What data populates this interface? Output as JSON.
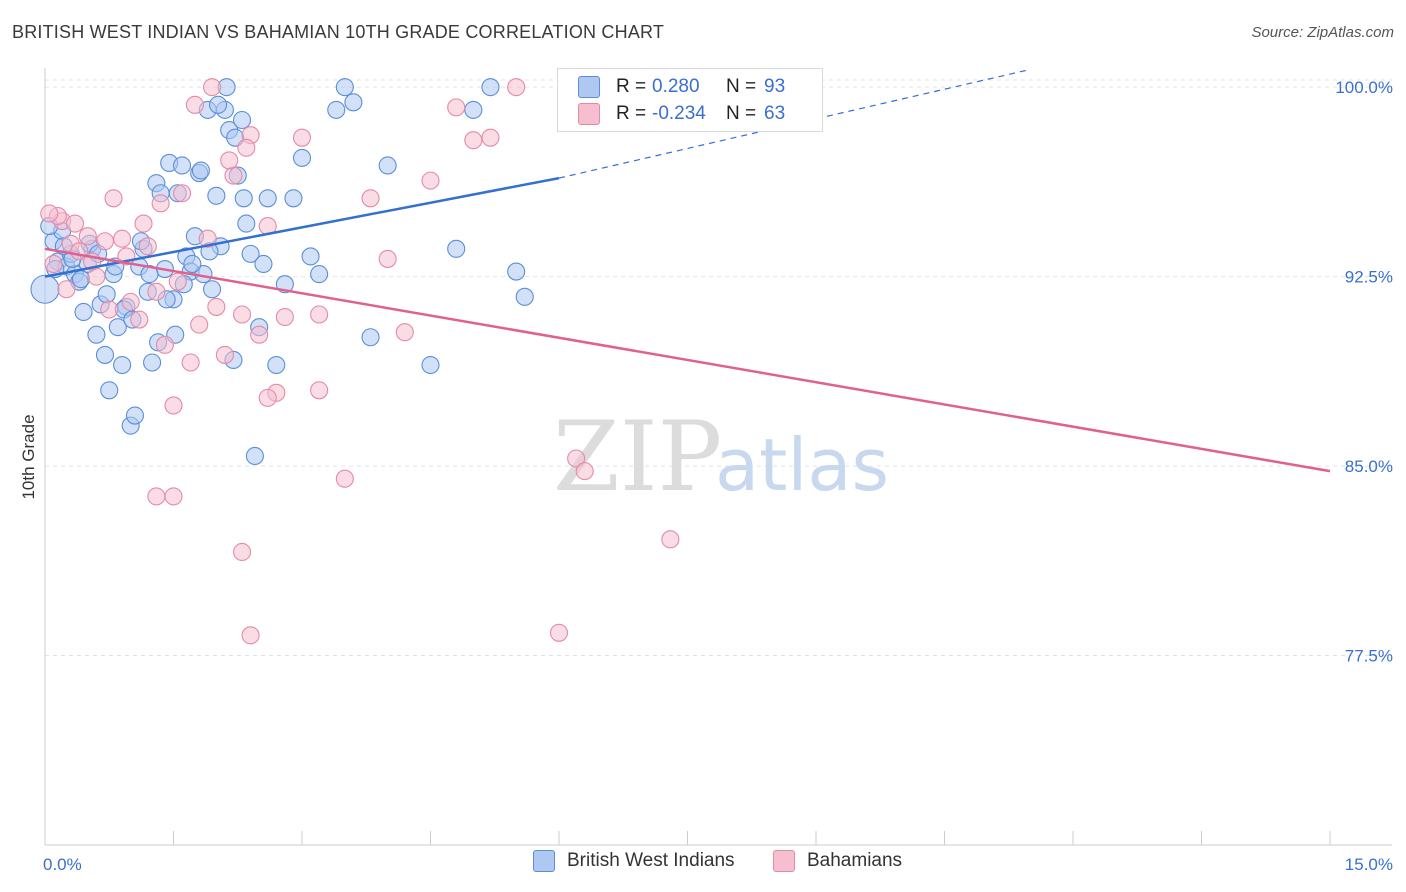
{
  "title": "BRITISH WEST INDIAN VS BAHAMIAN 10TH GRADE CORRELATION CHART",
  "source": "Source: ZipAtlas.com",
  "watermark": {
    "zip": "ZIP",
    "atlas": "atlas"
  },
  "legend": {
    "rows": [
      {
        "r_label": "R =",
        "r_value": "0.280",
        "n_label": "N =",
        "n_value": "93",
        "color": "#aec8f2",
        "border": "#5a8fd8"
      },
      {
        "r_label": "R =",
        "r_value": "-0.234",
        "n_label": "N =",
        "n_value": "63",
        "color": "#f6bfd0",
        "border": "#e48aa8"
      }
    ]
  },
  "bottom_legend": [
    {
      "label": "British West Indians",
      "color": "#aec8f2",
      "border": "#5a8fd8"
    },
    {
      "label": "Bahamians",
      "color": "#f6bfd0",
      "border": "#e48aa8"
    }
  ],
  "chart_data": {
    "type": "scatter",
    "title": "BRITISH WEST INDIAN VS BAHAMIAN 10TH GRADE CORRELATION CHART",
    "xlabel": "",
    "ylabel": "10th Grade",
    "xlim": [
      0,
      15
    ],
    "ylim": [
      70,
      100.6
    ],
    "x_tick_labels": [
      "0.0%",
      "15.0%"
    ],
    "y_ticks": [
      77.5,
      85.0,
      92.5,
      100.0
    ],
    "y_tick_labels": [
      "77.5%",
      "85.0%",
      "92.5%",
      "100.0%"
    ],
    "grid": true,
    "series": [
      {
        "name": "British West Indians",
        "color": "#5a8fd8",
        "fill": "#aec8f2",
        "trend": {
          "x": [
            0,
            6.0
          ],
          "y": [
            92.5,
            96.4
          ],
          "dashed_to": [
            11.5,
            100.7
          ],
          "color": "#3370d0"
        },
        "points": [
          [
            0.1,
            93.9
          ],
          [
            0.15,
            93.1
          ],
          [
            0.2,
            94.3
          ],
          [
            0.25,
            92.9
          ],
          [
            0.3,
            93.4
          ],
          [
            0.35,
            92.6
          ],
          [
            0.4,
            92.3
          ],
          [
            0.45,
            91.1
          ],
          [
            0.5,
            93.0
          ],
          [
            0.55,
            93.6
          ],
          [
            0.6,
            90.2
          ],
          [
            0.65,
            91.4
          ],
          [
            0.7,
            89.4
          ],
          [
            0.75,
            88.0
          ],
          [
            0.8,
            92.6
          ],
          [
            0.85,
            90.5
          ],
          [
            0.9,
            89.0
          ],
          [
            0.95,
            91.3
          ],
          [
            1.0,
            86.6
          ],
          [
            1.05,
            87.0
          ],
          [
            1.1,
            92.9
          ],
          [
            1.15,
            93.6
          ],
          [
            1.2,
            91.9
          ],
          [
            1.25,
            89.1
          ],
          [
            1.3,
            96.2
          ],
          [
            1.35,
            95.8
          ],
          [
            1.4,
            92.8
          ],
          [
            1.45,
            97.0
          ],
          [
            1.5,
            91.6
          ],
          [
            1.55,
            95.8
          ],
          [
            1.6,
            96.9
          ],
          [
            1.65,
            93.3
          ],
          [
            1.7,
            92.7
          ],
          [
            1.75,
            94.1
          ],
          [
            1.8,
            96.6
          ],
          [
            1.85,
            92.6
          ],
          [
            1.9,
            99.1
          ],
          [
            1.95,
            92.0
          ],
          [
            2.0,
            95.7
          ],
          [
            2.05,
            93.7
          ],
          [
            2.1,
            99.1
          ],
          [
            2.15,
            98.3
          ],
          [
            2.2,
            89.2
          ],
          [
            2.25,
            96.5
          ],
          [
            2.3,
            98.7
          ],
          [
            2.35,
            94.6
          ],
          [
            2.4,
            93.4
          ],
          [
            2.45,
            85.4
          ],
          [
            2.5,
            90.5
          ],
          [
            2.55,
            93.0
          ],
          [
            2.6,
            95.6
          ],
          [
            2.7,
            89.0
          ],
          [
            2.8,
            92.2
          ],
          [
            2.9,
            95.6
          ],
          [
            3.0,
            97.2
          ],
          [
            3.1,
            93.3
          ],
          [
            3.2,
            92.6
          ],
          [
            3.4,
            99.1
          ],
          [
            3.5,
            100.0
          ],
          [
            3.6,
            99.4
          ],
          [
            3.8,
            90.1
          ],
          [
            4.0,
            96.9
          ],
          [
            4.5,
            89.0
          ],
          [
            4.8,
            93.6
          ],
          [
            5.0,
            99.1
          ],
          [
            5.2,
            100.0
          ],
          [
            5.5,
            92.7
          ],
          [
            5.6,
            91.7
          ],
          [
            0.05,
            94.5
          ],
          [
            0.12,
            92.8
          ],
          [
            0.22,
            93.7
          ],
          [
            0.32,
            93.2
          ],
          [
            0.42,
            92.4
          ],
          [
            0.52,
            93.8
          ],
          [
            0.62,
            93.4
          ],
          [
            0.72,
            91.8
          ],
          [
            0.82,
            92.9
          ],
          [
            0.92,
            91.2
          ],
          [
            1.02,
            90.8
          ],
          [
            1.12,
            93.9
          ],
          [
            1.22,
            92.6
          ],
          [
            1.32,
            89.9
          ],
          [
            1.42,
            91.6
          ],
          [
            1.52,
            90.2
          ],
          [
            1.62,
            92.2
          ],
          [
            1.72,
            93.0
          ],
          [
            1.82,
            96.7
          ],
          [
            1.92,
            93.5
          ],
          [
            2.02,
            99.3
          ],
          [
            2.12,
            100.0
          ],
          [
            2.22,
            98.0
          ],
          [
            2.32,
            95.6
          ],
          [
            0.0,
            92.0
          ]
        ]
      },
      {
        "name": "Bahamians",
        "color": "#e48aa8",
        "fill": "#f6bfd0",
        "trend": {
          "x": [
            0,
            15.0
          ],
          "y": [
            93.6,
            84.8
          ],
          "color": "#e0608f"
        },
        "points": [
          [
            0.1,
            93.0
          ],
          [
            0.2,
            94.7
          ],
          [
            0.3,
            93.8
          ],
          [
            0.4,
            93.5
          ],
          [
            0.5,
            94.1
          ],
          [
            0.6,
            92.5
          ],
          [
            0.7,
            93.9
          ],
          [
            0.8,
            95.6
          ],
          [
            0.9,
            94.0
          ],
          [
            1.0,
            91.5
          ],
          [
            1.1,
            90.8
          ],
          [
            1.2,
            93.7
          ],
          [
            1.3,
            91.9
          ],
          [
            1.4,
            89.8
          ],
          [
            1.5,
            87.4
          ],
          [
            1.6,
            95.8
          ],
          [
            1.7,
            89.1
          ],
          [
            1.8,
            90.6
          ],
          [
            1.9,
            94.0
          ],
          [
            2.0,
            91.3
          ],
          [
            2.1,
            89.4
          ],
          [
            2.2,
            96.5
          ],
          [
            2.3,
            91.0
          ],
          [
            2.4,
            98.1
          ],
          [
            2.5,
            90.2
          ],
          [
            2.6,
            94.5
          ],
          [
            2.7,
            87.9
          ],
          [
            2.8,
            90.9
          ],
          [
            3.0,
            98.0
          ],
          [
            3.2,
            91.0
          ],
          [
            3.5,
            84.5
          ],
          [
            3.8,
            95.6
          ],
          [
            4.0,
            93.2
          ],
          [
            4.2,
            90.3
          ],
          [
            4.5,
            96.3
          ],
          [
            4.8,
            99.2
          ],
          [
            5.2,
            98.0
          ],
          [
            5.5,
            100.0
          ],
          [
            6.2,
            85.3
          ],
          [
            6.0,
            78.4
          ],
          [
            7.3,
            82.1
          ],
          [
            1.3,
            83.8
          ],
          [
            1.5,
            83.8
          ],
          [
            2.3,
            81.6
          ],
          [
            2.4,
            78.3
          ],
          [
            3.2,
            88.0
          ],
          [
            2.6,
            87.7
          ],
          [
            0.15,
            94.9
          ],
          [
            0.35,
            94.6
          ],
          [
            0.55,
            93.1
          ],
          [
            0.75,
            91.2
          ],
          [
            0.95,
            93.3
          ],
          [
            1.15,
            94.6
          ],
          [
            1.35,
            95.4
          ],
          [
            1.55,
            92.3
          ],
          [
            1.75,
            99.3
          ],
          [
            1.95,
            100.0
          ],
          [
            2.15,
            97.1
          ],
          [
            2.35,
            97.6
          ],
          [
            5.0,
            97.9
          ],
          [
            6.3,
            84.8
          ],
          [
            0.05,
            95.0
          ],
          [
            0.25,
            92.0
          ]
        ]
      }
    ]
  }
}
